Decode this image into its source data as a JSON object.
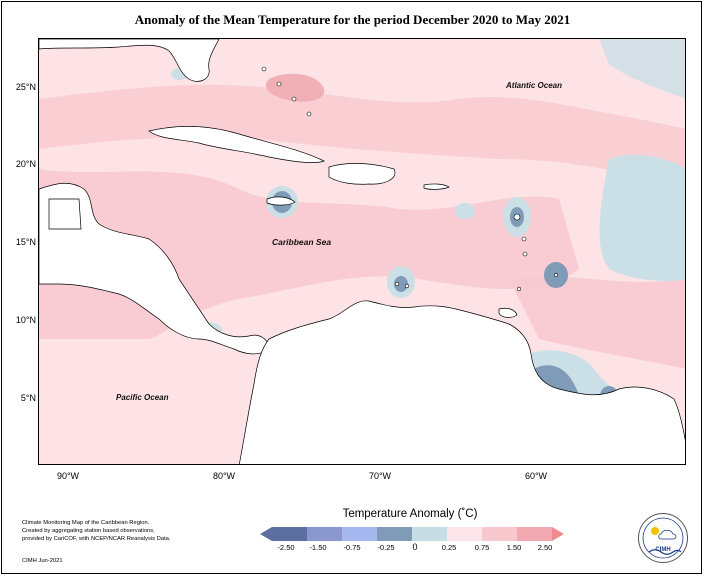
{
  "title": "Anomaly of the Mean Temperature for the period December 2020 to May 2021",
  "map": {
    "lat_labels": [
      "25°N",
      "20°N",
      "15°N",
      "10°N",
      "5°N"
    ],
    "lon_labels": [
      "90°W",
      "80°W",
      "70°W",
      "60°W"
    ],
    "ocean_labels": {
      "atlantic": "Atlantic Ocean",
      "caribbean": "Caribbean Sea",
      "pacific": "Pacific Ocean"
    }
  },
  "legend": {
    "title": "Temperature Anomaly (˚C)",
    "ticks": [
      "-2.50",
      "-1.50",
      "-0.75",
      "-0.25",
      "0",
      "0.25",
      "0.75",
      "1.50",
      "2.50"
    ],
    "colors": [
      "#5d6f9e",
      "#8b97cf",
      "#a6b8f0",
      "#7f9bb8",
      "#c7dde6",
      "#fde5ea",
      "#f8c8cf",
      "#f2a8b0",
      "#ef8a90"
    ]
  },
  "credit": {
    "lines": [
      "Climate Monitoring Map of the Caribbean Region.",
      "Created by aggregating station based observations,",
      "provided by CariCOF, with NCEP/NCAR Reanalysis Data."
    ],
    "date": "CIMH Jun-2021"
  },
  "logo": {
    "text": "CIMH"
  },
  "colors": {
    "land": "#ffffff",
    "ocean_light_pink": "#fde3e6",
    "ocean_pink": "#f8c9d0",
    "ocean_rose": "#f0b0b6",
    "anomaly_light_blue": "#cbdfe6",
    "anomaly_blue": "#7f9bb8",
    "anomaly_dark_blue": "#5d7aa3"
  }
}
